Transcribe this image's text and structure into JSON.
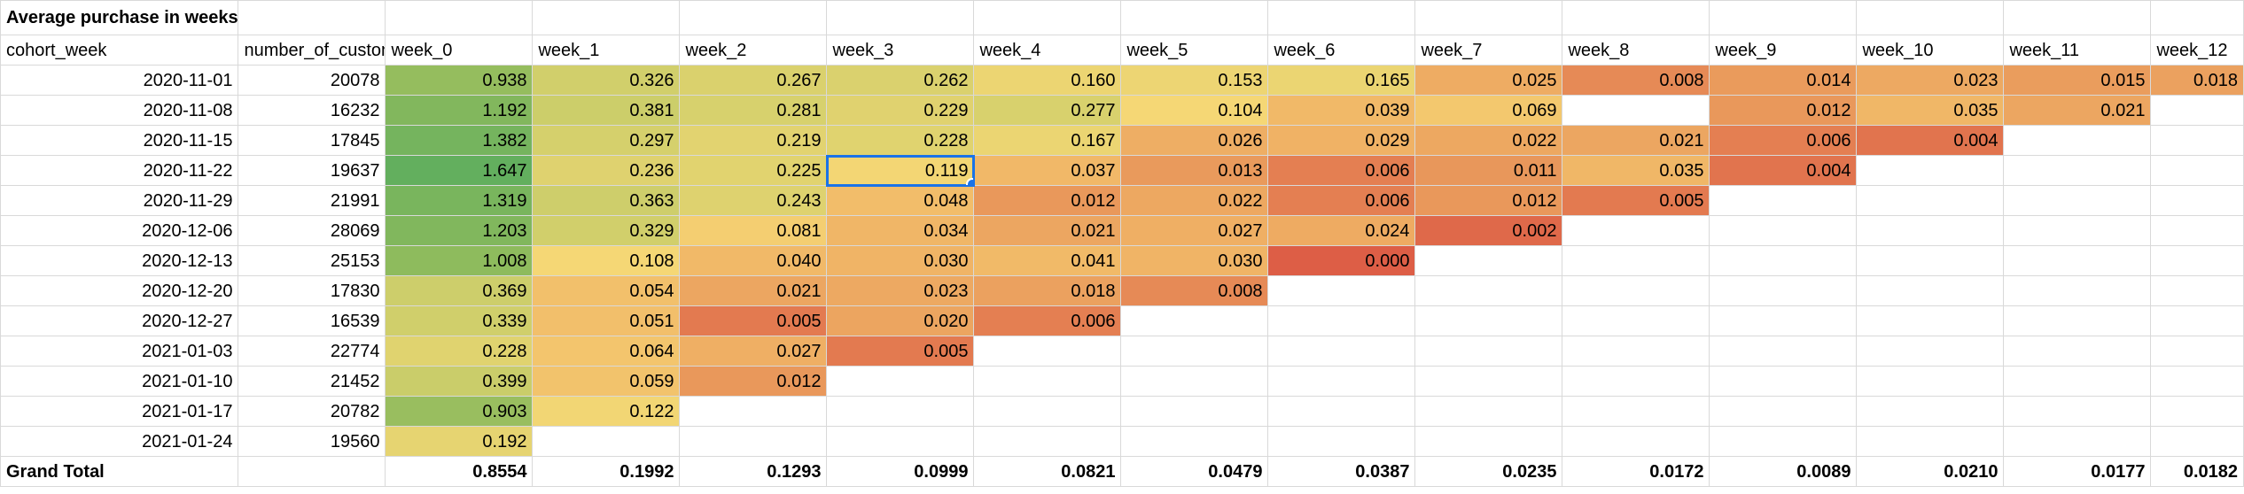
{
  "sheet": {
    "title": "Average purchase in weeks",
    "headers": [
      "cohort_week",
      "number_of_customers",
      "week_0",
      "week_1",
      "week_2",
      "week_3",
      "week_4",
      "week_5",
      "week_6",
      "week_7",
      "week_8",
      "week_9",
      "week_10",
      "week_11",
      "week_12"
    ],
    "rows": [
      {
        "cohort_week": "2020-11-01",
        "customers": "20078",
        "weeks": [
          "0.938",
          "0.326",
          "0.267",
          "0.262",
          "0.160",
          "0.153",
          "0.165",
          "0.025",
          "0.008",
          "0.014",
          "0.023",
          "0.015",
          "0.018"
        ]
      },
      {
        "cohort_week": "2020-11-08",
        "customers": "16232",
        "weeks": [
          "1.192",
          "0.381",
          "0.281",
          "0.229",
          "0.277",
          "0.104",
          "0.039",
          "0.069",
          "",
          "0.012",
          "0.035",
          "0.021",
          ""
        ]
      },
      {
        "cohort_week": "2020-11-15",
        "customers": "17845",
        "weeks": [
          "1.382",
          "0.297",
          "0.219",
          "0.228",
          "0.167",
          "0.026",
          "0.029",
          "0.022",
          "0.021",
          "0.006",
          "0.004",
          "",
          ""
        ]
      },
      {
        "cohort_week": "2020-11-22",
        "customers": "19637",
        "weeks": [
          "1.647",
          "0.236",
          "0.225",
          "0.119",
          "0.037",
          "0.013",
          "0.006",
          "0.011",
          "0.035",
          "0.004",
          "",
          "",
          ""
        ]
      },
      {
        "cohort_week": "2020-11-29",
        "customers": "21991",
        "weeks": [
          "1.319",
          "0.363",
          "0.243",
          "0.048",
          "0.012",
          "0.022",
          "0.006",
          "0.012",
          "0.005",
          "",
          "",
          "",
          ""
        ]
      },
      {
        "cohort_week": "2020-12-06",
        "customers": "28069",
        "weeks": [
          "1.203",
          "0.329",
          "0.081",
          "0.034",
          "0.021",
          "0.027",
          "0.024",
          "0.002",
          "",
          "",
          "",
          "",
          ""
        ]
      },
      {
        "cohort_week": "2020-12-13",
        "customers": "25153",
        "weeks": [
          "1.008",
          "0.108",
          "0.040",
          "0.030",
          "0.041",
          "0.030",
          "0.000",
          "",
          "",
          "",
          "",
          "",
          ""
        ]
      },
      {
        "cohort_week": "2020-12-20",
        "customers": "17830",
        "weeks": [
          "0.369",
          "0.054",
          "0.021",
          "0.023",
          "0.018",
          "0.008",
          "",
          "",
          "",
          "",
          "",
          "",
          ""
        ]
      },
      {
        "cohort_week": "2020-12-27",
        "customers": "16539",
        "weeks": [
          "0.339",
          "0.051",
          "0.005",
          "0.020",
          "0.006",
          "",
          "",
          "",
          "",
          "",
          "",
          "",
          ""
        ]
      },
      {
        "cohort_week": "2021-01-03",
        "customers": "22774",
        "weeks": [
          "0.228",
          "0.064",
          "0.027",
          "0.005",
          "",
          "",
          "",
          "",
          "",
          "",
          "",
          "",
          ""
        ]
      },
      {
        "cohort_week": "2021-01-10",
        "customers": "21452",
        "weeks": [
          "0.399",
          "0.059",
          "0.012",
          "",
          "",
          "",
          "",
          "",
          "",
          "",
          "",
          "",
          ""
        ]
      },
      {
        "cohort_week": "2021-01-17",
        "customers": "20782",
        "weeks": [
          "0.903",
          "0.122",
          "",
          "",
          "",
          "",
          "",
          "",
          "",
          "",
          "",
          "",
          ""
        ]
      },
      {
        "cohort_week": "2021-01-24",
        "customers": "19560",
        "weeks": [
          "0.192",
          "",
          "",
          "",
          "",
          "",
          "",
          "",
          "",
          "",
          "",
          "",
          ""
        ]
      }
    ],
    "total_label": "Grand Total",
    "totals": [
      "0.8554",
      "0.1992",
      "0.1293",
      "0.0999",
      "0.0821",
      "0.0479",
      "0.0387",
      "0.0235",
      "0.0172",
      "0.0089",
      "0.0210",
      "0.0177",
      "0.0182"
    ],
    "selected_cell": {
      "row": 3,
      "week": 3
    },
    "colors": {
      "green_dark": "#5fae5e",
      "green_mid": "#8fbb5d",
      "olive": "#d4d06c",
      "yellow": "#f6d775",
      "orange_light": "#f0b466",
      "orange": "#e8955a",
      "red": "#dd5e46",
      "selection": "#1a73e8",
      "gridline": "#d9d9d9"
    }
  }
}
